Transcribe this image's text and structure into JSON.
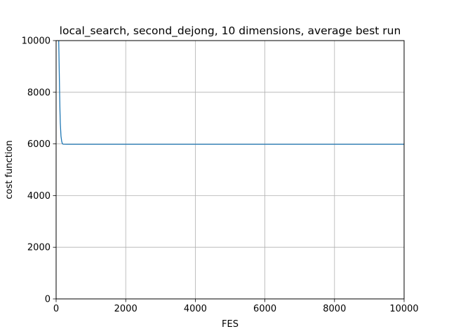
{
  "chart_data": {
    "type": "line",
    "title": "local_search, second_dejong, 10 dimensions, average best run",
    "xlabel": "FES",
    "ylabel": "cost function",
    "xlim": [
      0,
      10000
    ],
    "ylim": [
      0,
      10000
    ],
    "xticks": [
      0,
      2000,
      4000,
      6000,
      8000,
      10000
    ],
    "yticks": [
      0,
      2000,
      4000,
      6000,
      8000,
      10000
    ],
    "xtick_labels": [
      "0",
      "2000",
      "4000",
      "6000",
      "8000",
      "10000"
    ],
    "ytick_labels": [
      "0",
      "2000",
      "4000",
      "6000",
      "8000",
      "10000"
    ],
    "grid": true,
    "line_color": "#1f77b4",
    "series": [
      {
        "x": [
          70,
          80,
          90,
          100,
          110,
          120,
          140,
          160,
          180,
          200,
          300,
          500,
          1000,
          2000,
          4000,
          6000,
          8000,
          10000
        ],
        "values": [
          10300,
          9600,
          8800,
          8000,
          7300,
          6800,
          6300,
          6100,
          6010,
          5990,
          5985,
          5985,
          5985,
          5985,
          5985,
          5985,
          5985,
          5985
        ]
      }
    ]
  }
}
